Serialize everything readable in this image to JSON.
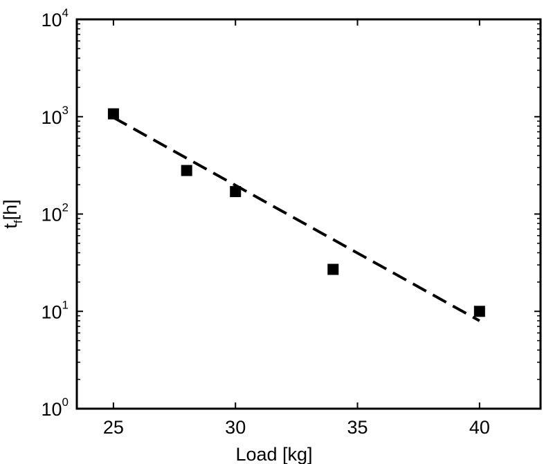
{
  "chart_data": {
    "type": "scatter",
    "title": "",
    "xlabel": "Load [kg]",
    "ylabel": {
      "main": "t",
      "subscript": "f",
      "unit": "[h]"
    },
    "xlim": [
      23.5,
      42.5
    ],
    "ylim": [
      1,
      10000
    ],
    "yscale": "log",
    "xticks": [
      25,
      30,
      35,
      40
    ],
    "yticks": [
      {
        "value": 1,
        "base": "10",
        "exp": "0"
      },
      {
        "value": 10,
        "base": "10",
        "exp": "1"
      },
      {
        "value": 100,
        "base": "10",
        "exp": "2"
      },
      {
        "value": 1000,
        "base": "10",
        "exp": "3"
      },
      {
        "value": 10000,
        "base": "10",
        "exp": "4"
      }
    ],
    "grid": false,
    "legend": "none",
    "series": [
      {
        "kind": "markers",
        "marker": "square",
        "color": "#000000",
        "x": [
          25,
          28,
          30,
          34,
          40
        ],
        "y": [
          1070,
          280,
          170,
          27,
          10
        ]
      },
      {
        "kind": "fit-line",
        "style": "dashed",
        "color": "#000000",
        "x": [
          25,
          40
        ],
        "y": [
          980,
          8
        ]
      }
    ]
  }
}
